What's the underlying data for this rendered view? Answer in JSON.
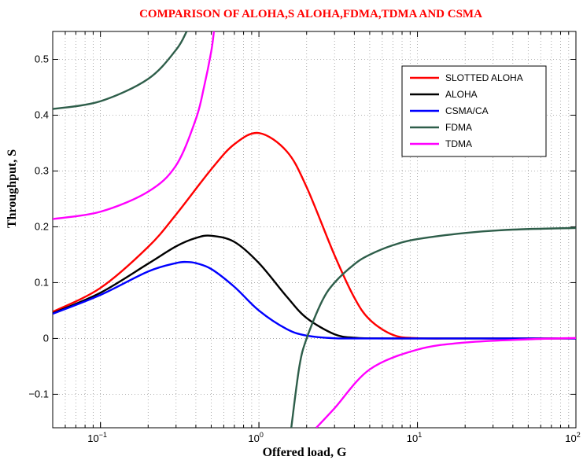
{
  "chart_data": {
    "type": "line",
    "title": "COMPARISON OF ALOHA,S ALOHA,FDMA,TDMA AND CSMA",
    "xlabel": "Offered load, G",
    "ylabel": "Throughput, S",
    "xscale": "log",
    "xlim": [
      0.05,
      100
    ],
    "ylim": [
      -0.16,
      0.55
    ],
    "grid": true,
    "legend_position": "top-right",
    "x_ticks": [
      {
        "base": "10",
        "exp": "−1",
        "value": 0.1
      },
      {
        "base": "10",
        "exp": "0",
        "value": 1
      },
      {
        "base": "10",
        "exp": "1",
        "value": 10
      },
      {
        "base": "10",
        "exp": "2",
        "value": 100
      }
    ],
    "y_ticks": [
      {
        "label": "−0.1",
        "value": -0.1
      },
      {
        "label": "0",
        "value": 0
      },
      {
        "label": "0.1",
        "value": 0.1
      },
      {
        "label": "0.2",
        "value": 0.2
      },
      {
        "label": "0.3",
        "value": 0.3
      },
      {
        "label": "0.4",
        "value": 0.4
      },
      {
        "label": "0.5",
        "value": 0.5
      }
    ],
    "series": [
      {
        "name": "SLOTTED ALOHA",
        "color": "#ff0000",
        "points": [
          [
            0.05,
            0.0476
          ],
          [
            0.1,
            0.0905
          ],
          [
            0.2,
            0.164
          ],
          [
            0.3,
            0.222
          ],
          [
            0.5,
            0.303
          ],
          [
            0.7,
            0.348
          ],
          [
            1,
            0.368
          ],
          [
            1.5,
            0.335
          ],
          [
            2,
            0.271
          ],
          [
            3,
            0.149
          ],
          [
            4,
            0.073
          ],
          [
            5,
            0.0337
          ],
          [
            7,
            0.0064
          ],
          [
            10,
            0.00045
          ],
          [
            20,
            0
          ],
          [
            100,
            0
          ]
        ]
      },
      {
        "name": "ALOHA",
        "color": "#000000",
        "points": [
          [
            0.05,
            0.0452
          ],
          [
            0.1,
            0.0819
          ],
          [
            0.2,
            0.134
          ],
          [
            0.3,
            0.165
          ],
          [
            0.4,
            0.18
          ],
          [
            0.5,
            0.184
          ],
          [
            0.7,
            0.173
          ],
          [
            1,
            0.135
          ],
          [
            1.5,
            0.0747
          ],
          [
            2,
            0.0366
          ],
          [
            3,
            0.0074
          ],
          [
            4,
            0.0013
          ],
          [
            5,
            0.0002
          ],
          [
            10,
            0
          ],
          [
            100,
            0
          ]
        ]
      },
      {
        "name": "CSMA/CA",
        "color": "#0000ff",
        "points": [
          [
            0.05,
            0.0442
          ],
          [
            0.1,
            0.0779
          ],
          [
            0.2,
            0.12
          ],
          [
            0.3,
            0.135
          ],
          [
            0.35,
            0.137
          ],
          [
            0.4,
            0.135
          ],
          [
            0.5,
            0.1245
          ],
          [
            0.7,
            0.0925
          ],
          [
            1,
            0.05
          ],
          [
            1.5,
            0.0167
          ],
          [
            2,
            0.0051
          ],
          [
            3,
            0.0004
          ],
          [
            5,
            0
          ],
          [
            100,
            0
          ]
        ]
      },
      {
        "name": "FDMA",
        "color": "#2e5e4a",
        "points": [
          [
            0.05,
            0.411
          ],
          [
            0.1,
            0.425
          ],
          [
            0.2,
            0.465
          ],
          [
            0.3,
            0.517
          ],
          [
            0.35,
            0.55
          ],
          [
            1.6,
            -0.16
          ],
          [
            1.8,
            -0.05
          ],
          [
            2,
            0.0
          ],
          [
            2.5,
            0.0667
          ],
          [
            3,
            0.1
          ],
          [
            4,
            0.133
          ],
          [
            5,
            0.15
          ],
          [
            7,
            0.167
          ],
          [
            10,
            0.178
          ],
          [
            20,
            0.189
          ],
          [
            40,
            0.195
          ],
          [
            100,
            0.198
          ]
        ]
      },
      {
        "name": "TDMA",
        "color": "#ff00ff",
        "points": [
          [
            0.05,
            0.214
          ],
          [
            0.1,
            0.227
          ],
          [
            0.2,
            0.263
          ],
          [
            0.3,
            0.31
          ],
          [
            0.4,
            0.393
          ],
          [
            0.45,
            0.45
          ],
          [
            0.5,
            0.514
          ],
          [
            0.52,
            0.55
          ],
          [
            2.3,
            -0.16
          ],
          [
            3,
            -0.125
          ],
          [
            5,
            -0.0555
          ],
          [
            10,
            -0.02
          ],
          [
            20,
            -0.0073
          ],
          [
            50,
            -0.0015
          ],
          [
            100,
            0.0008
          ]
        ]
      }
    ]
  }
}
